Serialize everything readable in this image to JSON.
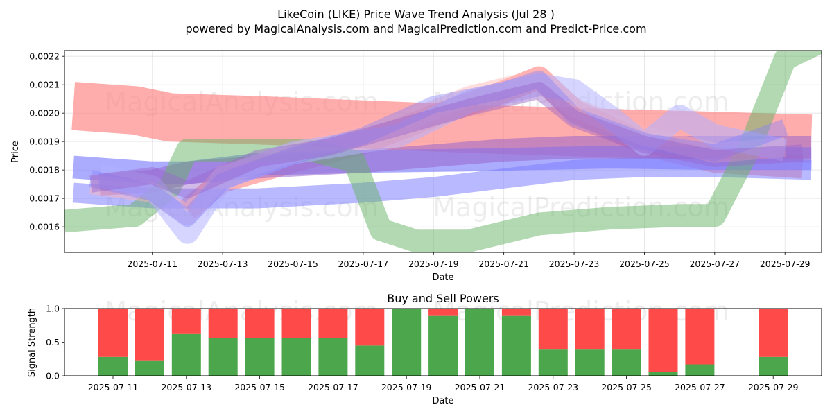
{
  "header": {
    "title": "LikeCoin (LIKE) Price Wave Trend Analysis (Jul 28 )",
    "subtitle": "powered by MagicalAnalysis.com and MagicalPrediction.com and Predict-Price.com"
  },
  "watermarks": {
    "left": "MagicalAnalysis.com",
    "right": "MagicalPrediction.com"
  },
  "chart_data": [
    {
      "type": "area",
      "xlabel": "Date",
      "ylabel": "Price",
      "x_domain": [
        "2025-07-08T12:00",
        "2025-07-30T01:00"
      ],
      "ylim": [
        0.00151,
        0.00222
      ],
      "yticks": [
        "0.0016",
        "0.0017",
        "0.0018",
        "0.0019",
        "0.0020",
        "0.0021",
        "0.0022"
      ],
      "xticks": [
        "2025-07-11",
        "2025-07-13",
        "2025-07-15",
        "2025-07-17",
        "2025-07-19",
        "2025-07-21",
        "2025-07-23",
        "2025-07-25",
        "2025-07-27",
        "2025-07-29"
      ],
      "grid": true,
      "legend": "none",
      "band_colors": {
        "red": "#ff8080",
        "blue": "#7f7fff",
        "green": "#66b366",
        "purple": "#9966cc",
        "pink": "#ffb3b3",
        "lightblue": "#b3b3ff"
      },
      "bands": [
        {
          "color": "red",
          "opacity": 0.65,
          "width": 0.00017,
          "points": [
            [
              "2025-07-08T18:00",
              0.002025
            ],
            [
              "2025-07-10T12:00",
              0.00201
            ],
            [
              "2025-07-11T12:00",
              0.001985
            ],
            [
              "2025-07-14T00:00",
              0.001975
            ],
            [
              "2025-07-17T00:00",
              0.00196
            ],
            [
              "2025-07-20T00:00",
              0.001945
            ],
            [
              "2025-07-24T00:00",
              0.00193
            ],
            [
              "2025-07-27T00:00",
              0.00192
            ],
            [
              "2025-07-29T18:00",
              0.00191
            ]
          ]
        },
        {
          "color": "red",
          "opacity": 0.6,
          "width": 8e-05,
          "points": [
            [
              "2025-07-12T00:00",
              0.00166
            ],
            [
              "2025-07-13T00:00",
              0.00176
            ],
            [
              "2025-07-15T00:00",
              0.00183
            ],
            [
              "2025-07-17T00:00",
              0.001895
            ],
            [
              "2025-07-19T00:00",
              0.00199
            ],
            [
              "2025-07-21T00:00",
              0.002075
            ],
            [
              "2025-07-22T00:00",
              0.002125
            ],
            [
              "2025-07-23T00:00",
              0.00201
            ],
            [
              "2025-07-25T00:00",
              0.00189
            ],
            [
              "2025-07-27T00:00",
              0.00183
            ],
            [
              "2025-07-29T12:00",
              0.00181
            ]
          ]
        },
        {
          "color": "blue",
          "opacity": 0.65,
          "width": 8e-05,
          "points": [
            [
              "2025-07-08T18:00",
              0.00181
            ],
            [
              "2025-07-11T00:00",
              0.00179
            ],
            [
              "2025-07-12T00:00",
              0.00179
            ],
            [
              "2025-07-14T00:00",
              0.00182
            ],
            [
              "2025-07-17T00:00",
              0.00183
            ],
            [
              "2025-07-20T00:00",
              0.001835
            ],
            [
              "2025-07-22T00:00",
              0.00184
            ],
            [
              "2025-07-24T00:00",
              0.001845
            ],
            [
              "2025-07-27T00:00",
              0.00184
            ],
            [
              "2025-07-29T18:00",
              0.00184
            ]
          ]
        },
        {
          "color": "blue",
          "opacity": 0.55,
          "width": 7e-05,
          "points": [
            [
              "2025-07-08T18:00",
              0.00172
            ],
            [
              "2025-07-11T00:00",
              0.0017
            ],
            [
              "2025-07-14T00:00",
              0.0017
            ],
            [
              "2025-07-17T00:00",
              0.00172
            ],
            [
              "2025-07-19T00:00",
              0.00174
            ],
            [
              "2025-07-21T00:00",
              0.00177
            ],
            [
              "2025-07-23T00:00",
              0.0018
            ],
            [
              "2025-07-25T00:00",
              0.00181
            ],
            [
              "2025-07-27T00:00",
              0.00181
            ],
            [
              "2025-07-29T18:00",
              0.0018
            ]
          ]
        },
        {
          "color": "purple",
          "opacity": 0.55,
          "width": 8e-05,
          "points": [
            [
              "2025-07-09T12:00",
              0.00175
            ],
            [
              "2025-07-11T00:00",
              0.00176
            ],
            [
              "2025-07-12T00:00",
              0.00179
            ],
            [
              "2025-07-14T00:00",
              0.00181
            ],
            [
              "2025-07-17T00:00",
              0.00183
            ],
            [
              "2025-07-19T00:00",
              0.00185
            ],
            [
              "2025-07-21T00:00",
              0.00187
            ],
            [
              "2025-07-23T00:00",
              0.00188
            ],
            [
              "2025-07-25T00:00",
              0.00188
            ],
            [
              "2025-07-27T00:00",
              0.00188
            ],
            [
              "2025-07-29T18:00",
              0.00188
            ]
          ]
        },
        {
          "color": "green",
          "opacity": 0.5,
          "width": 8e-05,
          "points": [
            [
              "2025-07-08T12:00",
              0.00162
            ],
            [
              "2025-07-10T12:00",
              0.00164
            ],
            [
              "2025-07-11T12:00",
              0.00174
            ],
            [
              "2025-07-12T00:00",
              0.00187
            ],
            [
              "2025-07-14T00:00",
              0.00187
            ],
            [
              "2025-07-15T12:00",
              0.00187
            ],
            [
              "2025-07-16T18:00",
              0.00183
            ],
            [
              "2025-07-17T12:00",
              0.00159
            ],
            [
              "2025-07-18T12:00",
              0.00155
            ],
            [
              "2025-07-20T00:00",
              0.00155
            ],
            [
              "2025-07-22T00:00",
              0.00161
            ],
            [
              "2025-07-24T00:00",
              0.00163
            ],
            [
              "2025-07-26T00:00",
              0.00164
            ],
            [
              "2025-07-27T00:00",
              0.00164
            ],
            [
              "2025-07-28T00:00",
              0.00188
            ],
            [
              "2025-07-29T00:00",
              0.00219
            ],
            [
              "2025-07-30T00:00",
              0.00225
            ]
          ]
        },
        {
          "color": "pink",
          "opacity": 0.45,
          "width": 7e-05,
          "points": [
            [
              "2025-07-09T06:00",
              0.00175
            ],
            [
              "2025-07-11T00:00",
              0.00172
            ],
            [
              "2025-07-12T00:00",
              0.00164
            ],
            [
              "2025-07-13T00:00",
              0.00178
            ],
            [
              "2025-07-15T00:00",
              0.00186
            ],
            [
              "2025-07-18T00:00",
              0.00196
            ],
            [
              "2025-07-20T00:00",
              0.00206
            ],
            [
              "2025-07-22T00:00",
              0.00212
            ],
            [
              "2025-07-23T00:00",
              0.00202
            ],
            [
              "2025-07-25T00:00",
              0.00192
            ],
            [
              "2025-07-27T00:00",
              0.00186
            ],
            [
              "2025-07-29T00:00",
              0.00188
            ]
          ]
        },
        {
          "color": "lightblue",
          "opacity": 0.55,
          "width": 8e-05,
          "points": [
            [
              "2025-07-09T12:00",
              0.00178
            ],
            [
              "2025-07-11T00:00",
              0.00174
            ],
            [
              "2025-07-12T00:00",
              0.00158
            ],
            [
              "2025-07-13T00:00",
              0.00177
            ],
            [
              "2025-07-15T00:00",
              0.00186
            ],
            [
              "2025-07-18T00:00",
              0.00192
            ],
            [
              "2025-07-20T00:00",
              0.00204
            ],
            [
              "2025-07-22T00:00",
              0.0021
            ],
            [
              "2025-07-23T00:00",
              0.00208
            ],
            [
              "2025-07-24T00:00",
              0.00199
            ],
            [
              "2025-07-25T00:00",
              0.00189
            ],
            [
              "2025-07-26T00:00",
              0.00199
            ],
            [
              "2025-07-27T00:00",
              0.00192
            ],
            [
              "2025-07-29T00:00",
              0.00187
            ]
          ]
        },
        {
          "color": "blue",
          "opacity": 0.4,
          "width": 6e-05,
          "points": [
            [
              "2025-07-09T06:00",
              0.00177
            ],
            [
              "2025-07-11T00:00",
              0.00172
            ],
            [
              "2025-07-12T00:00",
              0.00163
            ],
            [
              "2025-07-13T00:00",
              0.00176
            ],
            [
              "2025-07-15T00:00",
              0.00185
            ],
            [
              "2025-07-17T00:00",
              0.00192
            ],
            [
              "2025-07-19T00:00",
              0.00203
            ],
            [
              "2025-07-21T00:00",
              0.00208
            ],
            [
              "2025-07-22T00:00",
              0.00212
            ],
            [
              "2025-07-23T00:00",
              0.00199
            ],
            [
              "2025-07-25T00:00",
              0.0019
            ],
            [
              "2025-07-27T00:00",
              0.00186
            ],
            [
              "2025-07-29T00:00",
              0.00195
            ]
          ]
        },
        {
          "color": "purple",
          "opacity": 0.45,
          "width": 6e-05,
          "points": [
            [
              "2025-07-09T06:00",
              0.00175
            ],
            [
              "2025-07-11T00:00",
              0.00178
            ],
            [
              "2025-07-12T00:00",
              0.00173
            ],
            [
              "2025-07-14T00:00",
              0.00184
            ],
            [
              "2025-07-16T00:00",
              0.00188
            ],
            [
              "2025-07-18T00:00",
              0.00195
            ],
            [
              "2025-07-20T00:00",
              0.00202
            ],
            [
              "2025-07-22T00:00",
              0.00208
            ],
            [
              "2025-07-23T00:00",
              0.00198
            ],
            [
              "2025-07-25T00:00",
              0.00189
            ],
            [
              "2025-07-27T00:00",
              0.00184
            ],
            [
              "2025-07-29T12:00",
              0.00186
            ]
          ]
        }
      ]
    },
    {
      "type": "bar",
      "title": "Buy and Sell Powers",
      "xlabel": "Date",
      "ylabel": "Signal Strength",
      "ylim": [
        0,
        1.0
      ],
      "yticks": [
        "0.0",
        "0.5",
        "1.0"
      ],
      "xticks": [
        "2025-07-11",
        "2025-07-13",
        "2025-07-15",
        "2025-07-17",
        "2025-07-19",
        "2025-07-21",
        "2025-07-23",
        "2025-07-25",
        "2025-07-27",
        "2025-07-29"
      ],
      "colors": {
        "buy": "#4ca64c",
        "sell": "#ff4a4a"
      },
      "categories": [
        "2025-07-11",
        "2025-07-12",
        "2025-07-13",
        "2025-07-14",
        "2025-07-15",
        "2025-07-16",
        "2025-07-17",
        "2025-07-18",
        "2025-07-19",
        "2025-07-20",
        "2025-07-21",
        "2025-07-22",
        "2025-07-23",
        "2025-07-24",
        "2025-07-25",
        "2025-07-26",
        "2025-07-27",
        "2025-07-29"
      ],
      "series": [
        {
          "values": [
            0.28,
            0.23,
            0.62,
            0.56,
            0.56,
            0.56,
            0.56,
            0.45,
            1.0,
            0.89,
            1.0,
            0.89,
            0.39,
            0.39,
            0.39,
            0.06,
            0.17,
            0.28
          ]
        },
        {
          "values": [
            0.72,
            0.77,
            0.38,
            0.44,
            0.44,
            0.44,
            0.44,
            0.55,
            0.0,
            0.11,
            0.0,
            0.11,
            0.61,
            0.61,
            0.61,
            0.94,
            0.83,
            0.72
          ]
        }
      ]
    }
  ]
}
